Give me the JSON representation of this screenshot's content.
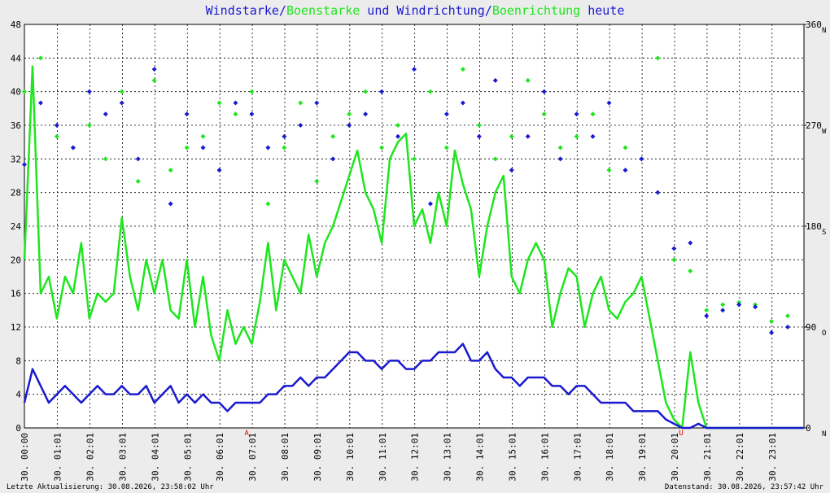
{
  "chart_data": {
    "type": "line",
    "title": [
      {
        "text": "Windstarke/",
        "color": "#1a1ad0"
      },
      {
        "text": "Boenstarke",
        "color": "#1ee61e"
      },
      {
        "text": " und Windrichtung/",
        "color": "#1a1ad0"
      },
      {
        "text": "Boenrichtung",
        "color": "#1ee61e"
      },
      {
        "text": " heute",
        "color": "#1a1ad0"
      }
    ],
    "xlim": [
      0,
      24
    ],
    "xticks": [
      {
        "value": 0,
        "label": "30. 00:00"
      },
      {
        "value": 1.017,
        "label": "30. 01:01"
      },
      {
        "value": 2.017,
        "label": "30. 02:01"
      },
      {
        "value": 3.017,
        "label": "30. 03:01"
      },
      {
        "value": 4.017,
        "label": "30. 04:01"
      },
      {
        "value": 5.017,
        "label": "30. 05:01"
      },
      {
        "value": 6.017,
        "label": "30. 06:01"
      },
      {
        "value": 7.017,
        "label": "30. 07:01"
      },
      {
        "value": 8.017,
        "label": "30. 08:01"
      },
      {
        "value": 9.017,
        "label": "30. 09:01"
      },
      {
        "value": 10.017,
        "label": "30. 10:01"
      },
      {
        "value": 11.017,
        "label": "30. 11:01"
      },
      {
        "value": 12.017,
        "label": "30. 12:01"
      },
      {
        "value": 13.017,
        "label": "30. 13:01"
      },
      {
        "value": 14.017,
        "label": "30. 14:01"
      },
      {
        "value": 15.017,
        "label": "30. 15:01"
      },
      {
        "value": 16.017,
        "label": "30. 16:01"
      },
      {
        "value": 17.017,
        "label": "30. 17:01"
      },
      {
        "value": 18.017,
        "label": "30. 18:01"
      },
      {
        "value": 19.017,
        "label": "30. 19:01"
      },
      {
        "value": 20.017,
        "label": "30. 20:01"
      },
      {
        "value": 21.017,
        "label": "30. 21:01"
      },
      {
        "value": 22.017,
        "label": "30. 22:01"
      },
      {
        "value": 23.017,
        "label": "30. 23:01"
      }
    ],
    "ylim": [
      0,
      48
    ],
    "yticks": [
      0,
      4,
      8,
      12,
      16,
      20,
      24,
      28,
      32,
      36,
      40,
      44,
      48
    ],
    "y2lim": [
      0,
      360
    ],
    "y2ticks": [
      0,
      90,
      180,
      270,
      360
    ],
    "y2tick_directions": [
      "N",
      "O",
      "S",
      "W",
      "N"
    ],
    "grid": true,
    "series": [
      {
        "name": "Boenstarke",
        "color": "#1ee61e",
        "mode": "line",
        "x": [
          0,
          0.25,
          0.5,
          0.75,
          1,
          1.25,
          1.5,
          1.75,
          2,
          2.25,
          2.5,
          2.75,
          3,
          3.25,
          3.5,
          3.75,
          4,
          4.25,
          4.5,
          4.75,
          5,
          5.25,
          5.5,
          5.75,
          6,
          6.25,
          6.5,
          6.75,
          7,
          7.25,
          7.5,
          7.75,
          8,
          8.25,
          8.5,
          8.75,
          9,
          9.25,
          9.5,
          9.75,
          10,
          10.25,
          10.5,
          10.75,
          11,
          11.25,
          11.5,
          11.75,
          12,
          12.25,
          12.5,
          12.75,
          13,
          13.25,
          13.5,
          13.75,
          14,
          14.25,
          14.5,
          14.75,
          15,
          15.25,
          15.5,
          15.75,
          16,
          16.25,
          16.5,
          16.75,
          17,
          17.25,
          17.5,
          17.75,
          18,
          18.25,
          18.5,
          18.75,
          19,
          19.25,
          19.5,
          19.75,
          20,
          20.25,
          20.5,
          20.75,
          21,
          21.25,
          21.5,
          21.75,
          22,
          22.25,
          22.5,
          22.75,
          23,
          23.25,
          23.5,
          23.75,
          24
        ],
        "values": [
          20,
          43,
          16,
          18,
          13,
          18,
          16,
          22,
          13,
          16,
          15,
          16,
          25,
          18,
          14,
          20,
          16,
          20,
          14,
          13,
          20,
          12,
          18,
          11,
          8,
          14,
          10,
          12,
          10,
          15,
          22,
          14,
          20,
          18,
          16,
          23,
          18,
          22,
          24,
          27,
          30,
          33,
          28,
          26,
          22,
          32,
          34,
          35,
          24,
          26,
          22,
          28,
          24,
          33,
          29,
          26,
          18,
          24,
          28,
          30,
          18,
          16,
          20,
          22,
          20,
          12,
          16,
          19,
          18,
          12,
          16,
          18,
          14,
          13,
          15,
          16,
          18,
          13,
          8,
          3,
          1,
          0,
          9,
          3,
          0,
          0,
          0,
          0,
          0,
          0,
          0,
          0,
          0,
          0,
          0,
          0,
          0
        ]
      },
      {
        "name": "Windstarke",
        "color": "#1a1ad0",
        "mode": "line",
        "x": [
          0,
          0.25,
          0.5,
          0.75,
          1,
          1.25,
          1.5,
          1.75,
          2,
          2.25,
          2.5,
          2.75,
          3,
          3.25,
          3.5,
          3.75,
          4,
          4.25,
          4.5,
          4.75,
          5,
          5.25,
          5.5,
          5.75,
          6,
          6.25,
          6.5,
          6.75,
          7,
          7.25,
          7.5,
          7.75,
          8,
          8.25,
          8.5,
          8.75,
          9,
          9.25,
          9.5,
          9.75,
          10,
          10.25,
          10.5,
          10.75,
          11,
          11.25,
          11.5,
          11.75,
          12,
          12.25,
          12.5,
          12.75,
          13,
          13.25,
          13.5,
          13.75,
          14,
          14.25,
          14.5,
          14.75,
          15,
          15.25,
          15.5,
          15.75,
          16,
          16.25,
          16.5,
          16.75,
          17,
          17.25,
          17.5,
          17.75,
          18,
          18.25,
          18.5,
          18.75,
          19,
          19.25,
          19.5,
          19.75,
          20,
          20.25,
          20.5,
          20.75,
          21,
          21.25,
          21.5,
          21.75,
          22,
          22.25,
          22.5,
          22.75,
          23,
          23.25,
          23.5,
          23.75,
          24
        ],
        "values": [
          3,
          7,
          5,
          3,
          4,
          5,
          4,
          3,
          4,
          5,
          4,
          4,
          5,
          4,
          4,
          5,
          3,
          4,
          5,
          3,
          4,
          3,
          4,
          3,
          3,
          2,
          3,
          3,
          3,
          3,
          4,
          4,
          5,
          5,
          6,
          5,
          6,
          6,
          7,
          8,
          9,
          9,
          8,
          8,
          7,
          8,
          8,
          7,
          7,
          8,
          8,
          9,
          9,
          9,
          10,
          8,
          8,
          9,
          7,
          6,
          6,
          5,
          6,
          6,
          6,
          5,
          5,
          4,
          5,
          5,
          4,
          3,
          3,
          3,
          3,
          2,
          2,
          2,
          2,
          1,
          0.5,
          0,
          0,
          0.5,
          0,
          0,
          0,
          0,
          0,
          0,
          0,
          0,
          0,
          0,
          0,
          0,
          0
        ]
      },
      {
        "name": "Boenrichtung",
        "color": "#1ee61e",
        "mode": "markers",
        "axis": "y2",
        "x": [
          0,
          0.5,
          1,
          1.5,
          2,
          2.5,
          3,
          3.5,
          4,
          4.5,
          5,
          5.5,
          6,
          6.5,
          7,
          7.5,
          8,
          8.5,
          9,
          9.5,
          10,
          10.5,
          11,
          11.5,
          12,
          12.5,
          13,
          13.5,
          14,
          14.5,
          15,
          15.5,
          16,
          16.5,
          17,
          17.5,
          18,
          18.5,
          19,
          19.5,
          20,
          20.5,
          21,
          21.5,
          22,
          22.5,
          23,
          23.5
        ],
        "values": [
          300,
          330,
          260,
          250,
          270,
          240,
          300,
          220,
          310,
          230,
          250,
          260,
          290,
          280,
          300,
          200,
          250,
          290,
          220,
          260,
          280,
          300,
          250,
          270,
          240,
          300,
          250,
          320,
          270,
          240,
          260,
          310,
          280,
          250,
          260,
          280,
          230,
          250,
          240,
          330,
          150,
          140,
          105,
          110,
          112,
          110,
          95,
          100
        ]
      },
      {
        "name": "Windrichtung",
        "color": "#1a1ad0",
        "mode": "markers",
        "axis": "y2",
        "x": [
          0,
          0.5,
          1,
          1.5,
          2,
          2.5,
          3,
          3.5,
          4,
          4.5,
          5,
          5.5,
          6,
          6.5,
          7,
          7.5,
          8,
          8.5,
          9,
          9.5,
          10,
          10.5,
          11,
          11.5,
          12,
          12.5,
          13,
          13.5,
          14,
          14.5,
          15,
          15.5,
          16,
          16.5,
          17,
          17.5,
          18,
          18.5,
          19,
          19.5,
          20,
          20.5,
          21,
          21.5,
          22,
          22.5,
          23,
          23.5
        ],
        "values": [
          235,
          290,
          270,
          250,
          300,
          280,
          290,
          240,
          320,
          200,
          280,
          250,
          230,
          290,
          280,
          250,
          260,
          270,
          290,
          240,
          270,
          280,
          300,
          260,
          320,
          200,
          280,
          290,
          260,
          310,
          230,
          260,
          300,
          240,
          280,
          260,
          290,
          230,
          240,
          210,
          160,
          165,
          100,
          105,
          110,
          108,
          85,
          90
        ]
      }
    ],
    "annotations": [
      {
        "label": "A",
        "x": 6.84,
        "color": "#e00000"
      },
      {
        "label": "U",
        "x": 20.22,
        "color": "#e00000"
      }
    ],
    "footer_left": "Letzte Aktualisierung: 30.08.2026, 23:58:02 Uhr",
    "footer_right": "Datenstand: 30.08.2026, 23:57:42 Uhr"
  }
}
